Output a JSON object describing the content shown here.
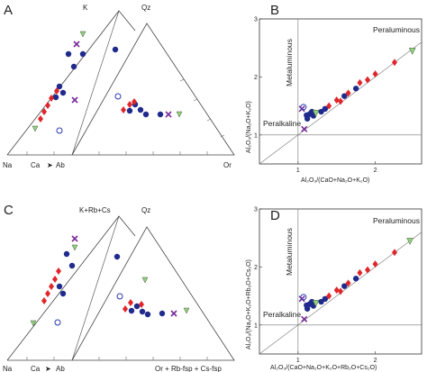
{
  "panels": {
    "A": {
      "letter": "A",
      "corners": {
        "top": "K",
        "left": "Na",
        "ca": "Ca",
        "mid": "Ab",
        "top2": "Qz",
        "right": "Or"
      }
    },
    "B": {
      "letter": "B",
      "region_top": "Peraluminous",
      "region_left": "Metaluminous",
      "region_bottom": "Peralkaline",
      "ylabel": "Al₂O₃/(Na₂O+K₂O)",
      "xlabel": "Al₂O₃/(CaO+Na₂O+K₂O)",
      "yticks": [
        "1",
        "2",
        "3"
      ],
      "xticks": [
        "1",
        "2"
      ]
    },
    "C": {
      "letter": "C",
      "corners": {
        "top": "K+Rb+Cs",
        "left": "Na",
        "ca": "Ca",
        "mid": "Ab",
        "top2": "Qz",
        "right": "Or + Rb-fsp + Cs-fsp"
      }
    },
    "D": {
      "letter": "D",
      "region_top": "Peraluminous",
      "region_left": "Metaluminous",
      "region_bottom": "Peralkaline",
      "ylabel": "Al₂O₃/(Na₂O+K₂O+Rb₂O+Cs₂O)",
      "xlabel": "Al₂O₃/(CaO+Na₂O+K₂O+Rb₂O+Cs₂O)",
      "yticks": [
        "1",
        "2",
        "3"
      ],
      "xticks": [
        "1",
        "2"
      ]
    }
  },
  "colors": {
    "blue_dot": "#1f2a8c",
    "red_diamond": "#e0262b",
    "green_triangle": "#8fd27a",
    "purple_x": "#7a2a9a",
    "open_circle": "#2a3ab0"
  },
  "chart_data": [
    {
      "type": "scatter",
      "panel": "B",
      "xlim": [
        0.5,
        2.6
      ],
      "ylim": [
        0.5,
        3.0
      ],
      "reference_lines": {
        "vertical_x": 1.0,
        "horizontal_y": 1.0,
        "diagonal": "y = x"
      },
      "series": [
        {
          "marker": "circle",
          "color": "#1f2a8c",
          "points": [
            [
              1.11,
              1.34
            ],
            [
              1.15,
              1.36
            ],
            [
              1.18,
              1.4
            ],
            [
              1.2,
              1.33
            ],
            [
              1.3,
              1.4
            ],
            [
              1.35,
              1.45
            ],
            [
              1.6,
              1.67
            ],
            [
              1.75,
              1.8
            ],
            [
              1.12,
              1.28
            ]
          ]
        },
        {
          "marker": "diamond",
          "color": "#e0262b",
          "points": [
            [
              1.4,
              1.5
            ],
            [
              1.5,
              1.6
            ],
            [
              1.55,
              1.58
            ],
            [
              1.65,
              1.72
            ],
            [
              1.8,
              1.9
            ],
            [
              1.9,
              1.95
            ],
            [
              2.0,
              2.05
            ],
            [
              2.25,
              2.25
            ]
          ]
        },
        {
          "marker": "triangle",
          "color": "#8fd27a",
          "points": [
            [
              1.23,
              1.38
            ],
            [
              2.48,
              2.45
            ]
          ]
        },
        {
          "marker": "x",
          "color": "#7a2a9a",
          "points": [
            [
              1.05,
              1.45
            ],
            [
              1.08,
              1.1
            ]
          ]
        },
        {
          "marker": "open-circle",
          "color": "#2a3ab0",
          "points": [
            [
              1.07,
              1.48
            ]
          ]
        }
      ]
    },
    {
      "type": "scatter",
      "panel": "D",
      "xlim": [
        0.5,
        2.6
      ],
      "ylim": [
        0.5,
        3.0
      ],
      "reference_lines": {
        "vertical_x": 1.0,
        "horizontal_y": 1.0,
        "diagonal": "y = x"
      },
      "series": [
        {
          "marker": "circle",
          "color": "#1f2a8c",
          "points": [
            [
              1.11,
              1.34
            ],
            [
              1.15,
              1.36
            ],
            [
              1.18,
              1.4
            ],
            [
              1.2,
              1.33
            ],
            [
              1.3,
              1.4
            ],
            [
              1.35,
              1.45
            ],
            [
              1.6,
              1.67
            ],
            [
              1.75,
              1.8
            ],
            [
              1.12,
              1.28
            ]
          ]
        },
        {
          "marker": "diamond",
          "color": "#e0262b",
          "points": [
            [
              1.4,
              1.5
            ],
            [
              1.5,
              1.6
            ],
            [
              1.55,
              1.58
            ],
            [
              1.65,
              1.72
            ],
            [
              1.8,
              1.9
            ],
            [
              1.9,
              1.95
            ],
            [
              2.0,
              2.05
            ],
            [
              2.25,
              2.25
            ]
          ]
        },
        {
          "marker": "triangle",
          "color": "#8fd27a",
          "points": [
            [
              1.23,
              1.38
            ],
            [
              2.45,
              2.45
            ]
          ]
        },
        {
          "marker": "x",
          "color": "#7a2a9a",
          "points": [
            [
              1.05,
              1.45
            ],
            [
              1.08,
              1.1
            ]
          ]
        },
        {
          "marker": "open-circle",
          "color": "#2a3ab0",
          "points": [
            [
              1.07,
              1.48
            ]
          ]
        }
      ]
    }
  ]
}
